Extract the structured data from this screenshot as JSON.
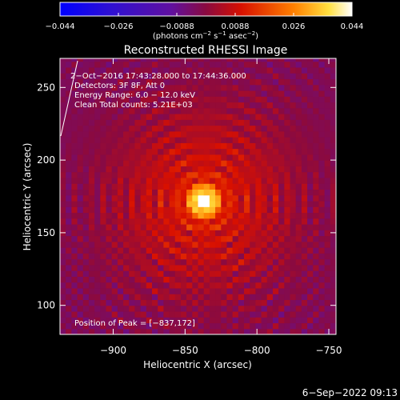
{
  "colorbar": {
    "ticks": [
      "−0.044",
      "−0.026",
      "−0.0088",
      "0.0088",
      "0.026",
      "0.044"
    ],
    "units_main": "(photons cm",
    "units_exp1": "−2",
    "units_mid": " s",
    "units_exp2": "−1",
    "units_end": " asec",
    "units_exp3": "−2",
    "units_close": ")"
  },
  "title": "Reconstructed RHESSI Image",
  "info": {
    "line1": "2−Oct−2016 17:43:28.000 to 17:44:36.000",
    "line2": "Detectors: 3F 8F, Att 0",
    "line3": "Energy Range: 6.0 − 12.0 keV",
    "line4": "Clean    Total counts: 5.21E+03"
  },
  "peak_label": "Position of Peak = [−837,172]",
  "timestamp": "6−Sep−2022 09:13",
  "colors": {
    "background": "#000000",
    "axes": "#ffffff"
  },
  "chart_data": {
    "type": "heatmap",
    "colormap": "RHESSI blue-purple-red-yellow-white",
    "title": "Reconstructed RHESSI Image",
    "xlabel": "Heliocentric X (arcsec)",
    "ylabel": "Heliocentric Y (arcsec)",
    "xlim": [
      -937,
      -745
    ],
    "ylim": [
      80,
      270
    ],
    "x_ticks": [
      -900,
      -850,
      -800,
      -750
    ],
    "y_ticks": [
      100,
      150,
      200,
      250
    ],
    "x_tick_labels": [
      "−900",
      "−850",
      "−800",
      "−750"
    ],
    "y_tick_labels": [
      "100",
      "150",
      "200",
      "250"
    ],
    "color_range": [
      -0.044,
      0.044
    ],
    "peak": {
      "x": -837,
      "y": 172
    },
    "source_halo_radius_arcsec": 45,
    "ring_spacing_arcsec": 10
  }
}
